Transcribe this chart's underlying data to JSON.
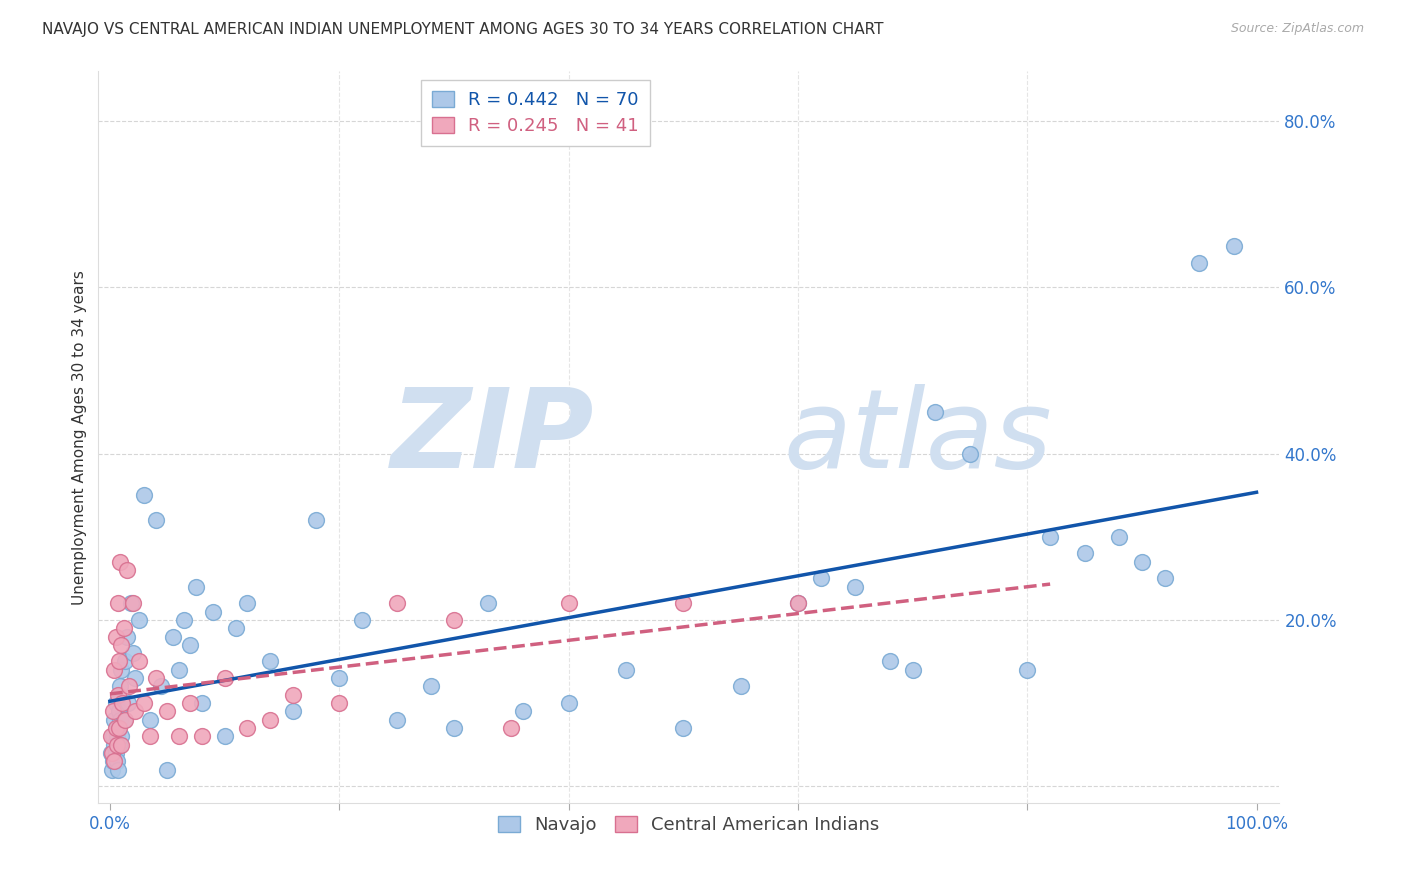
{
  "title": "NAVAJO VS CENTRAL AMERICAN INDIAN UNEMPLOYMENT AMONG AGES 30 TO 34 YEARS CORRELATION CHART",
  "source": "Source: ZipAtlas.com",
  "ylabel": "Unemployment Among Ages 30 to 34 years",
  "xlim": [
    -0.01,
    1.02
  ],
  "ylim": [
    -0.02,
    0.86
  ],
  "xticks": [
    0.0,
    0.2,
    0.4,
    0.6,
    0.8,
    1.0
  ],
  "xtick_labels": [
    "0.0%",
    "",
    "",
    "",
    "",
    "100.0%"
  ],
  "yticks": [
    0.0,
    0.2,
    0.4,
    0.6,
    0.8
  ],
  "ytick_labels": [
    "",
    "20.0%",
    "40.0%",
    "60.0%",
    "80.0%"
  ],
  "navajo_color": "#adc8e8",
  "navajo_edge_color": "#7aaad4",
  "pink_color": "#f0a8bc",
  "pink_edge_color": "#d87090",
  "regression_blue": "#1155aa",
  "regression_pink": "#d06080",
  "legend_R_navajo": "R = 0.442",
  "legend_N_navajo": "N = 70",
  "legend_R_pink": "R = 0.245",
  "legend_N_pink": "N = 41",
  "navajo_x": [
    0.001,
    0.002,
    0.003,
    0.003,
    0.004,
    0.004,
    0.005,
    0.005,
    0.006,
    0.006,
    0.007,
    0.007,
    0.008,
    0.008,
    0.009,
    0.009,
    0.01,
    0.01,
    0.012,
    0.013,
    0.015,
    0.016,
    0.018,
    0.02,
    0.022,
    0.025,
    0.03,
    0.035,
    0.04,
    0.045,
    0.05,
    0.055,
    0.06,
    0.065,
    0.07,
    0.075,
    0.08,
    0.09,
    0.1,
    0.11,
    0.12,
    0.14,
    0.16,
    0.18,
    0.2,
    0.22,
    0.25,
    0.28,
    0.3,
    0.33,
    0.36,
    0.4,
    0.45,
    0.5,
    0.55,
    0.6,
    0.62,
    0.65,
    0.68,
    0.7,
    0.72,
    0.75,
    0.8,
    0.82,
    0.85,
    0.88,
    0.9,
    0.92,
    0.95,
    0.98
  ],
  "navajo_y": [
    0.04,
    0.02,
    0.06,
    0.03,
    0.05,
    0.08,
    0.04,
    0.1,
    0.06,
    0.03,
    0.07,
    0.02,
    0.09,
    0.05,
    0.08,
    0.12,
    0.06,
    0.14,
    0.08,
    0.15,
    0.18,
    0.1,
    0.22,
    0.16,
    0.13,
    0.2,
    0.35,
    0.08,
    0.32,
    0.12,
    0.02,
    0.18,
    0.14,
    0.2,
    0.17,
    0.24,
    0.1,
    0.21,
    0.06,
    0.19,
    0.22,
    0.15,
    0.09,
    0.32,
    0.13,
    0.2,
    0.08,
    0.12,
    0.07,
    0.22,
    0.09,
    0.1,
    0.14,
    0.07,
    0.12,
    0.22,
    0.25,
    0.24,
    0.15,
    0.14,
    0.45,
    0.4,
    0.14,
    0.3,
    0.28,
    0.3,
    0.27,
    0.25,
    0.63,
    0.65
  ],
  "pink_x": [
    0.001,
    0.002,
    0.003,
    0.004,
    0.004,
    0.005,
    0.005,
    0.006,
    0.007,
    0.007,
    0.008,
    0.008,
    0.009,
    0.01,
    0.01,
    0.011,
    0.012,
    0.013,
    0.015,
    0.017,
    0.02,
    0.022,
    0.025,
    0.03,
    0.035,
    0.04,
    0.05,
    0.06,
    0.07,
    0.08,
    0.1,
    0.12,
    0.14,
    0.16,
    0.2,
    0.25,
    0.3,
    0.35,
    0.4,
    0.5,
    0.6
  ],
  "pink_y": [
    0.06,
    0.04,
    0.09,
    0.03,
    0.14,
    0.07,
    0.18,
    0.05,
    0.11,
    0.22,
    0.07,
    0.15,
    0.27,
    0.05,
    0.17,
    0.1,
    0.19,
    0.08,
    0.26,
    0.12,
    0.22,
    0.09,
    0.15,
    0.1,
    0.06,
    0.13,
    0.09,
    0.06,
    0.1,
    0.06,
    0.13,
    0.07,
    0.08,
    0.11,
    0.1,
    0.22,
    0.2,
    0.07,
    0.22,
    0.22,
    0.22
  ],
  "background_color": "#ffffff",
  "grid_color": "#cccccc",
  "watermark_zip": "ZIP",
  "watermark_atlas": "atlas",
  "watermark_color": "#d0dff0",
  "title_fontsize": 11,
  "axis_label_fontsize": 11,
  "tick_fontsize": 12,
  "tick_color": "#3377cc",
  "legend_fontsize": 13
}
